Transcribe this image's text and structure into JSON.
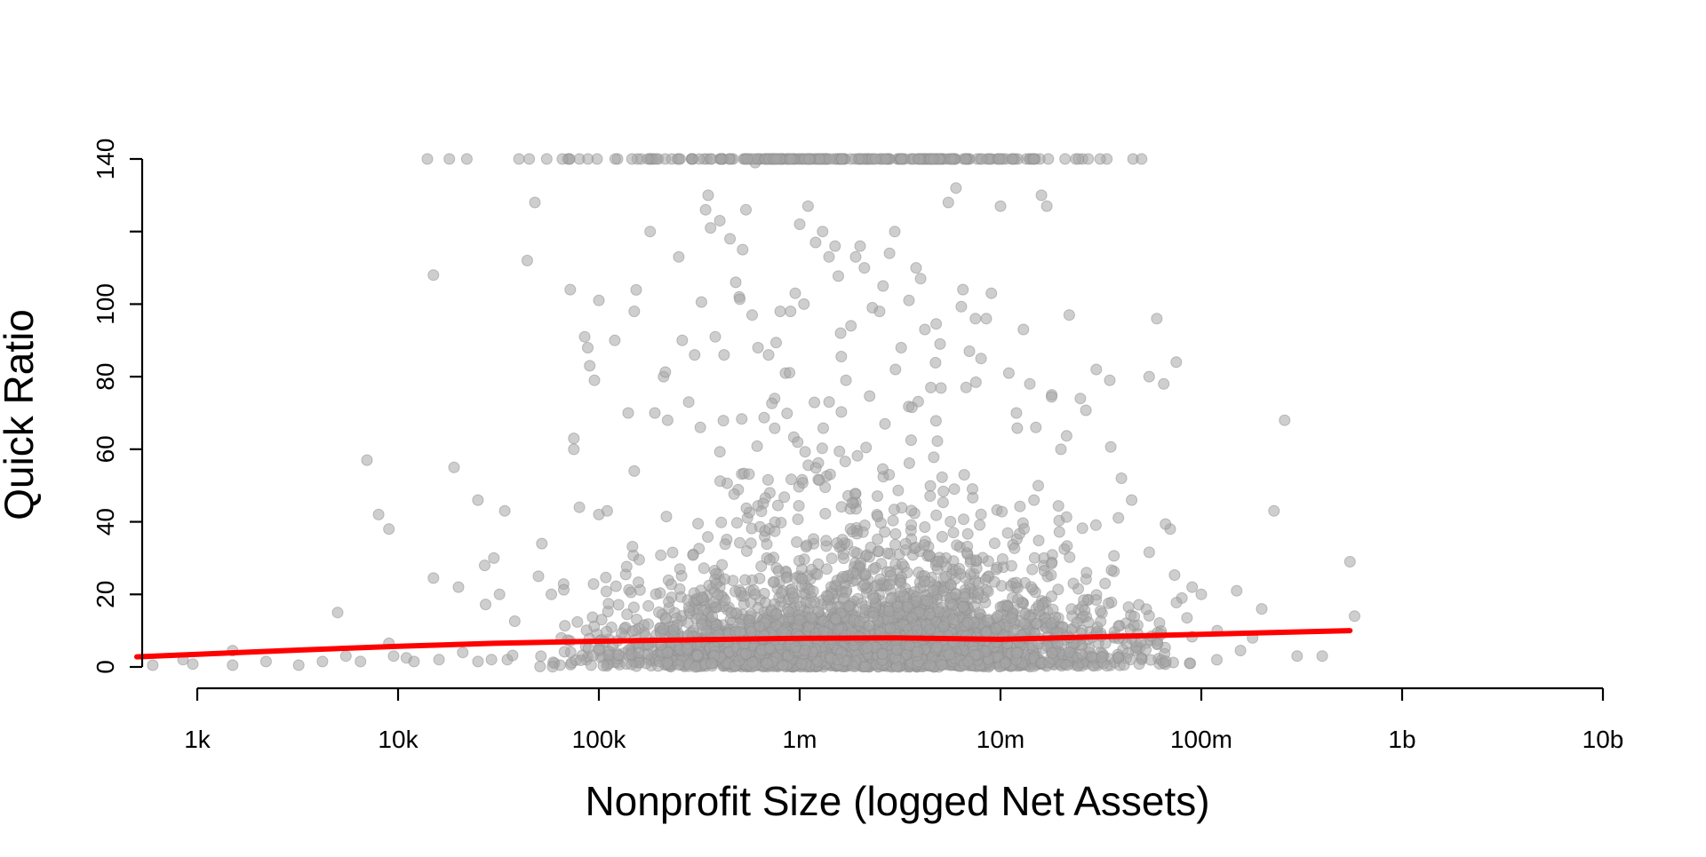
{
  "colors": {
    "points": "#a0a0a0",
    "trend_line": "#ff0000",
    "axis": "#000000",
    "background": "#ffffff"
  },
  "chart_data": {
    "type": "scatter",
    "title": "",
    "xlabel": "Nonprofit Size (logged Net Assets)",
    "ylabel": "Quick Ratio",
    "x_scale": "log10",
    "xlim": [
      500,
      10000000000
    ],
    "ylim": [
      0,
      140
    ],
    "x_axis_range": [
      1000,
      10000000000
    ],
    "y_axis_range": [
      0,
      140
    ],
    "x_ticks": [
      {
        "value": 1000,
        "label": "1k"
      },
      {
        "value": 10000,
        "label": "10k"
      },
      {
        "value": 100000,
        "label": "100k"
      },
      {
        "value": 1000000,
        "label": "1m"
      },
      {
        "value": 10000000,
        "label": "10m"
      },
      {
        "value": 100000000,
        "label": "100m"
      },
      {
        "value": 1000000000,
        "label": "1b"
      },
      {
        "value": 10000000000,
        "label": "10b"
      }
    ],
    "y_ticks": [
      {
        "value": 0,
        "label": "0"
      },
      {
        "value": 20,
        "label": "20"
      },
      {
        "value": 40,
        "label": "40"
      },
      {
        "value": 60,
        "label": "60"
      },
      {
        "value": 80,
        "label": "80"
      },
      {
        "value": 100,
        "label": "100"
      },
      {
        "value": 120,
        "label": ""
      },
      {
        "value": 140,
        "label": "140"
      }
    ],
    "grid": false,
    "legend": "none",
    "series": [
      {
        "kind": "points",
        "note": "thousands of semi-transparent points; values above 140 are capped at 140",
        "points": [
          [
            600,
            0.5
          ],
          [
            850,
            2
          ],
          [
            950,
            0.8
          ],
          [
            1500,
            4.5
          ],
          [
            1500,
            0.5
          ],
          [
            2200,
            1.5
          ],
          [
            3200,
            0.5
          ],
          [
            4200,
            1.5
          ],
          [
            5000,
            15
          ],
          [
            5500,
            3
          ],
          [
            6500,
            1.5
          ],
          [
            7000,
            57
          ],
          [
            8000,
            42
          ],
          [
            9000,
            38
          ],
          [
            9000,
            6.5
          ],
          [
            9500,
            3
          ],
          [
            11000,
            2.5
          ],
          [
            12000,
            1.5
          ],
          [
            14000,
            140
          ],
          [
            15000,
            24.5
          ],
          [
            15000,
            108
          ],
          [
            16000,
            2
          ],
          [
            18000,
            140
          ],
          [
            19000,
            55
          ],
          [
            20000,
            22
          ],
          [
            21000,
            4
          ],
          [
            22000,
            140
          ],
          [
            25000,
            46
          ],
          [
            25000,
            1.5
          ],
          [
            27000,
            28
          ],
          [
            30000,
            30
          ],
          [
            32000,
            20
          ],
          [
            34000,
            43
          ],
          [
            35000,
            2
          ],
          [
            40000,
            140
          ],
          [
            44000,
            112
          ],
          [
            45000,
            140
          ],
          [
            48000,
            128
          ],
          [
            50000,
            25
          ],
          [
            52000,
            34
          ],
          [
            55000,
            140
          ],
          [
            58000,
            20
          ],
          [
            60000,
            1
          ],
          [
            65000,
            8
          ],
          [
            70000,
            140
          ],
          [
            72000,
            104
          ],
          [
            75000,
            60
          ],
          [
            75000,
            63
          ],
          [
            80000,
            44
          ],
          [
            80000,
            140
          ],
          [
            85000,
            91
          ],
          [
            88000,
            88
          ],
          [
            90000,
            83
          ],
          [
            95000,
            79
          ],
          [
            100000,
            101
          ],
          [
            100000,
            42
          ],
          [
            110000,
            43
          ],
          [
            120000,
            90
          ],
          [
            140000,
            70
          ],
          [
            150000,
            98
          ],
          [
            150000,
            54
          ],
          [
            180000,
            120
          ],
          [
            190000,
            70
          ],
          [
            210000,
            80
          ],
          [
            220000,
            68
          ],
          [
            250000,
            113
          ],
          [
            260000,
            90
          ],
          [
            280000,
            73
          ],
          [
            300000,
            86
          ],
          [
            320000,
            66
          ],
          [
            340000,
            126
          ],
          [
            350000,
            130
          ],
          [
            360000,
            121
          ],
          [
            380000,
            91
          ],
          [
            400000,
            123
          ],
          [
            420000,
            86
          ],
          [
            450000,
            118
          ],
          [
            480000,
            106
          ],
          [
            500000,
            102
          ],
          [
            520000,
            115
          ],
          [
            540000,
            126
          ],
          [
            580000,
            97
          ],
          [
            600000,
            139
          ],
          [
            620000,
            88
          ],
          [
            700000,
            86
          ],
          [
            750000,
            74
          ],
          [
            800000,
            98
          ],
          [
            850000,
            81
          ],
          [
            900000,
            98
          ],
          [
            950000,
            103
          ],
          [
            1000000,
            122
          ],
          [
            1050000,
            100
          ],
          [
            1100000,
            127
          ],
          [
            1200000,
            117
          ],
          [
            1300000,
            120
          ],
          [
            1350000,
            140
          ],
          [
            1400000,
            113
          ],
          [
            1500000,
            116
          ],
          [
            1600000,
            92
          ],
          [
            1700000,
            79
          ],
          [
            1800000,
            94
          ],
          [
            1900000,
            113
          ],
          [
            2000000,
            116
          ],
          [
            2100000,
            110
          ],
          [
            2200000,
            140
          ],
          [
            2300000,
            99
          ],
          [
            2500000,
            98
          ],
          [
            2600000,
            105
          ],
          [
            2800000,
            114
          ],
          [
            3000000,
            82
          ],
          [
            3200000,
            88
          ],
          [
            3500000,
            101
          ],
          [
            3800000,
            110
          ],
          [
            4000000,
            107
          ],
          [
            4200000,
            93
          ],
          [
            4500000,
            77
          ],
          [
            5000000,
            89
          ],
          [
            5500000,
            128
          ],
          [
            6000000,
            132
          ],
          [
            6500000,
            104
          ],
          [
            7000000,
            87
          ],
          [
            7500000,
            96
          ],
          [
            8000000,
            85
          ],
          [
            8500000,
            96
          ],
          [
            9000000,
            103
          ],
          [
            10000000,
            127
          ],
          [
            11000000,
            81
          ],
          [
            12000000,
            70
          ],
          [
            13000000,
            93
          ],
          [
            14000000,
            78
          ],
          [
            15000000,
            66
          ],
          [
            16000000,
            130
          ],
          [
            17000000,
            127
          ],
          [
            18000000,
            75
          ],
          [
            20000000,
            60
          ],
          [
            22000000,
            97
          ],
          [
            25000000,
            74
          ],
          [
            30000000,
            82
          ],
          [
            35000000,
            79
          ],
          [
            40000000,
            52
          ],
          [
            45000000,
            46
          ],
          [
            55000000,
            80
          ],
          [
            60000000,
            96
          ],
          [
            65000000,
            78
          ],
          [
            70000000,
            38
          ],
          [
            75000000,
            84
          ],
          [
            80000000,
            19
          ],
          [
            90000000,
            22
          ],
          [
            100000000,
            20
          ],
          [
            120000000,
            10
          ],
          [
            150000000,
            21
          ],
          [
            180000000,
            8
          ],
          [
            200000000,
            16
          ],
          [
            230000000,
            43
          ],
          [
            260000000,
            68
          ],
          [
            300000000,
            3
          ],
          [
            400000000,
            3
          ],
          [
            550000000,
            29
          ],
          [
            580000000,
            14
          ]
        ]
      },
      {
        "kind": "trend_line",
        "points": [
          [
            500,
            2.8
          ],
          [
            3000,
            4.6
          ],
          [
            10000,
            5.7
          ],
          [
            30000,
            6.5
          ],
          [
            100000,
            7.1
          ],
          [
            300000,
            7.5
          ],
          [
            1000000,
            7.9
          ],
          [
            3000000,
            8.0
          ],
          [
            10000000,
            7.6
          ],
          [
            30000000,
            8.3
          ],
          [
            100000000,
            9.0
          ],
          [
            550000000,
            10.0
          ]
        ]
      }
    ]
  }
}
